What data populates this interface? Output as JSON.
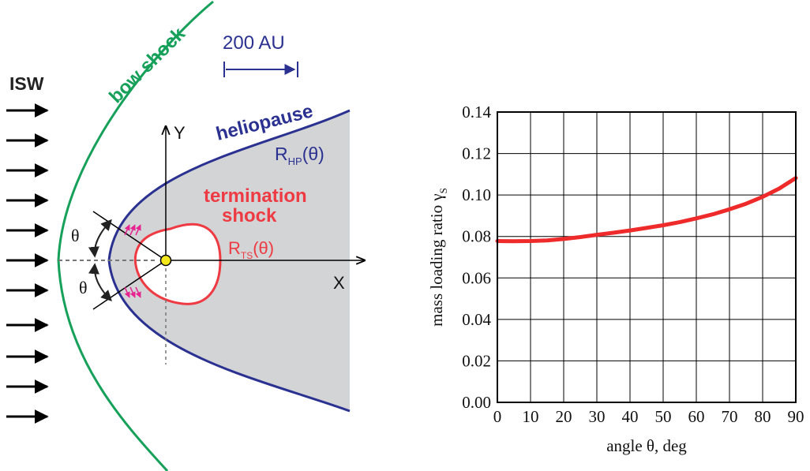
{
  "diagram": {
    "isw_label": "ISW",
    "bow_shock_label": "bow shock",
    "scale_label": "200 AU",
    "heliopause_label": "heliopause",
    "rhp_main": "R",
    "rhp_sub": "HP",
    "rhp_arg": "(θ)",
    "termination_line1": "termination",
    "termination_line2": "shock",
    "rts_main": "R",
    "rts_sub": "TS",
    "rts_arg": "(θ)",
    "y_axis_label": "Y",
    "x_axis_label": "X",
    "theta_upper": "θ",
    "theta_lower": "θ",
    "colors": {
      "bow_shock": "#16a05a",
      "heliopause": "#2b3190",
      "termination_shock": "#ee3a43",
      "heliosheath_fill": "#d3d4d6",
      "small_arrows": "#e6238f",
      "sun": "#f4e81c"
    }
  },
  "chart_data": {
    "type": "line",
    "xlabel": "angle θ, deg",
    "ylabel_main": "mass loading ratio γ",
    "ylabel_sub": "S",
    "xlim": [
      0,
      90
    ],
    "ylim": [
      0,
      0.14
    ],
    "x_ticks": [
      "0",
      "10",
      "20",
      "30",
      "40",
      "50",
      "60",
      "70",
      "80",
      "90"
    ],
    "y_ticks": [
      "0.00",
      "0.02",
      "0.04",
      "0.06",
      "0.08",
      "0.10",
      "0.12",
      "0.14"
    ],
    "grid": true,
    "series": [
      {
        "color": "#ee2a2a",
        "x": [
          0,
          5,
          10,
          15,
          20,
          25,
          30,
          35,
          40,
          45,
          50,
          55,
          60,
          65,
          70,
          75,
          80,
          85,
          90
        ],
        "y": [
          0.0778,
          0.0777,
          0.0778,
          0.0781,
          0.0788,
          0.0797,
          0.0808,
          0.0818,
          0.0829,
          0.0841,
          0.0854,
          0.0869,
          0.0887,
          0.0907,
          0.0931,
          0.0958,
          0.0991,
          0.1031,
          0.1082
        ]
      }
    ]
  }
}
